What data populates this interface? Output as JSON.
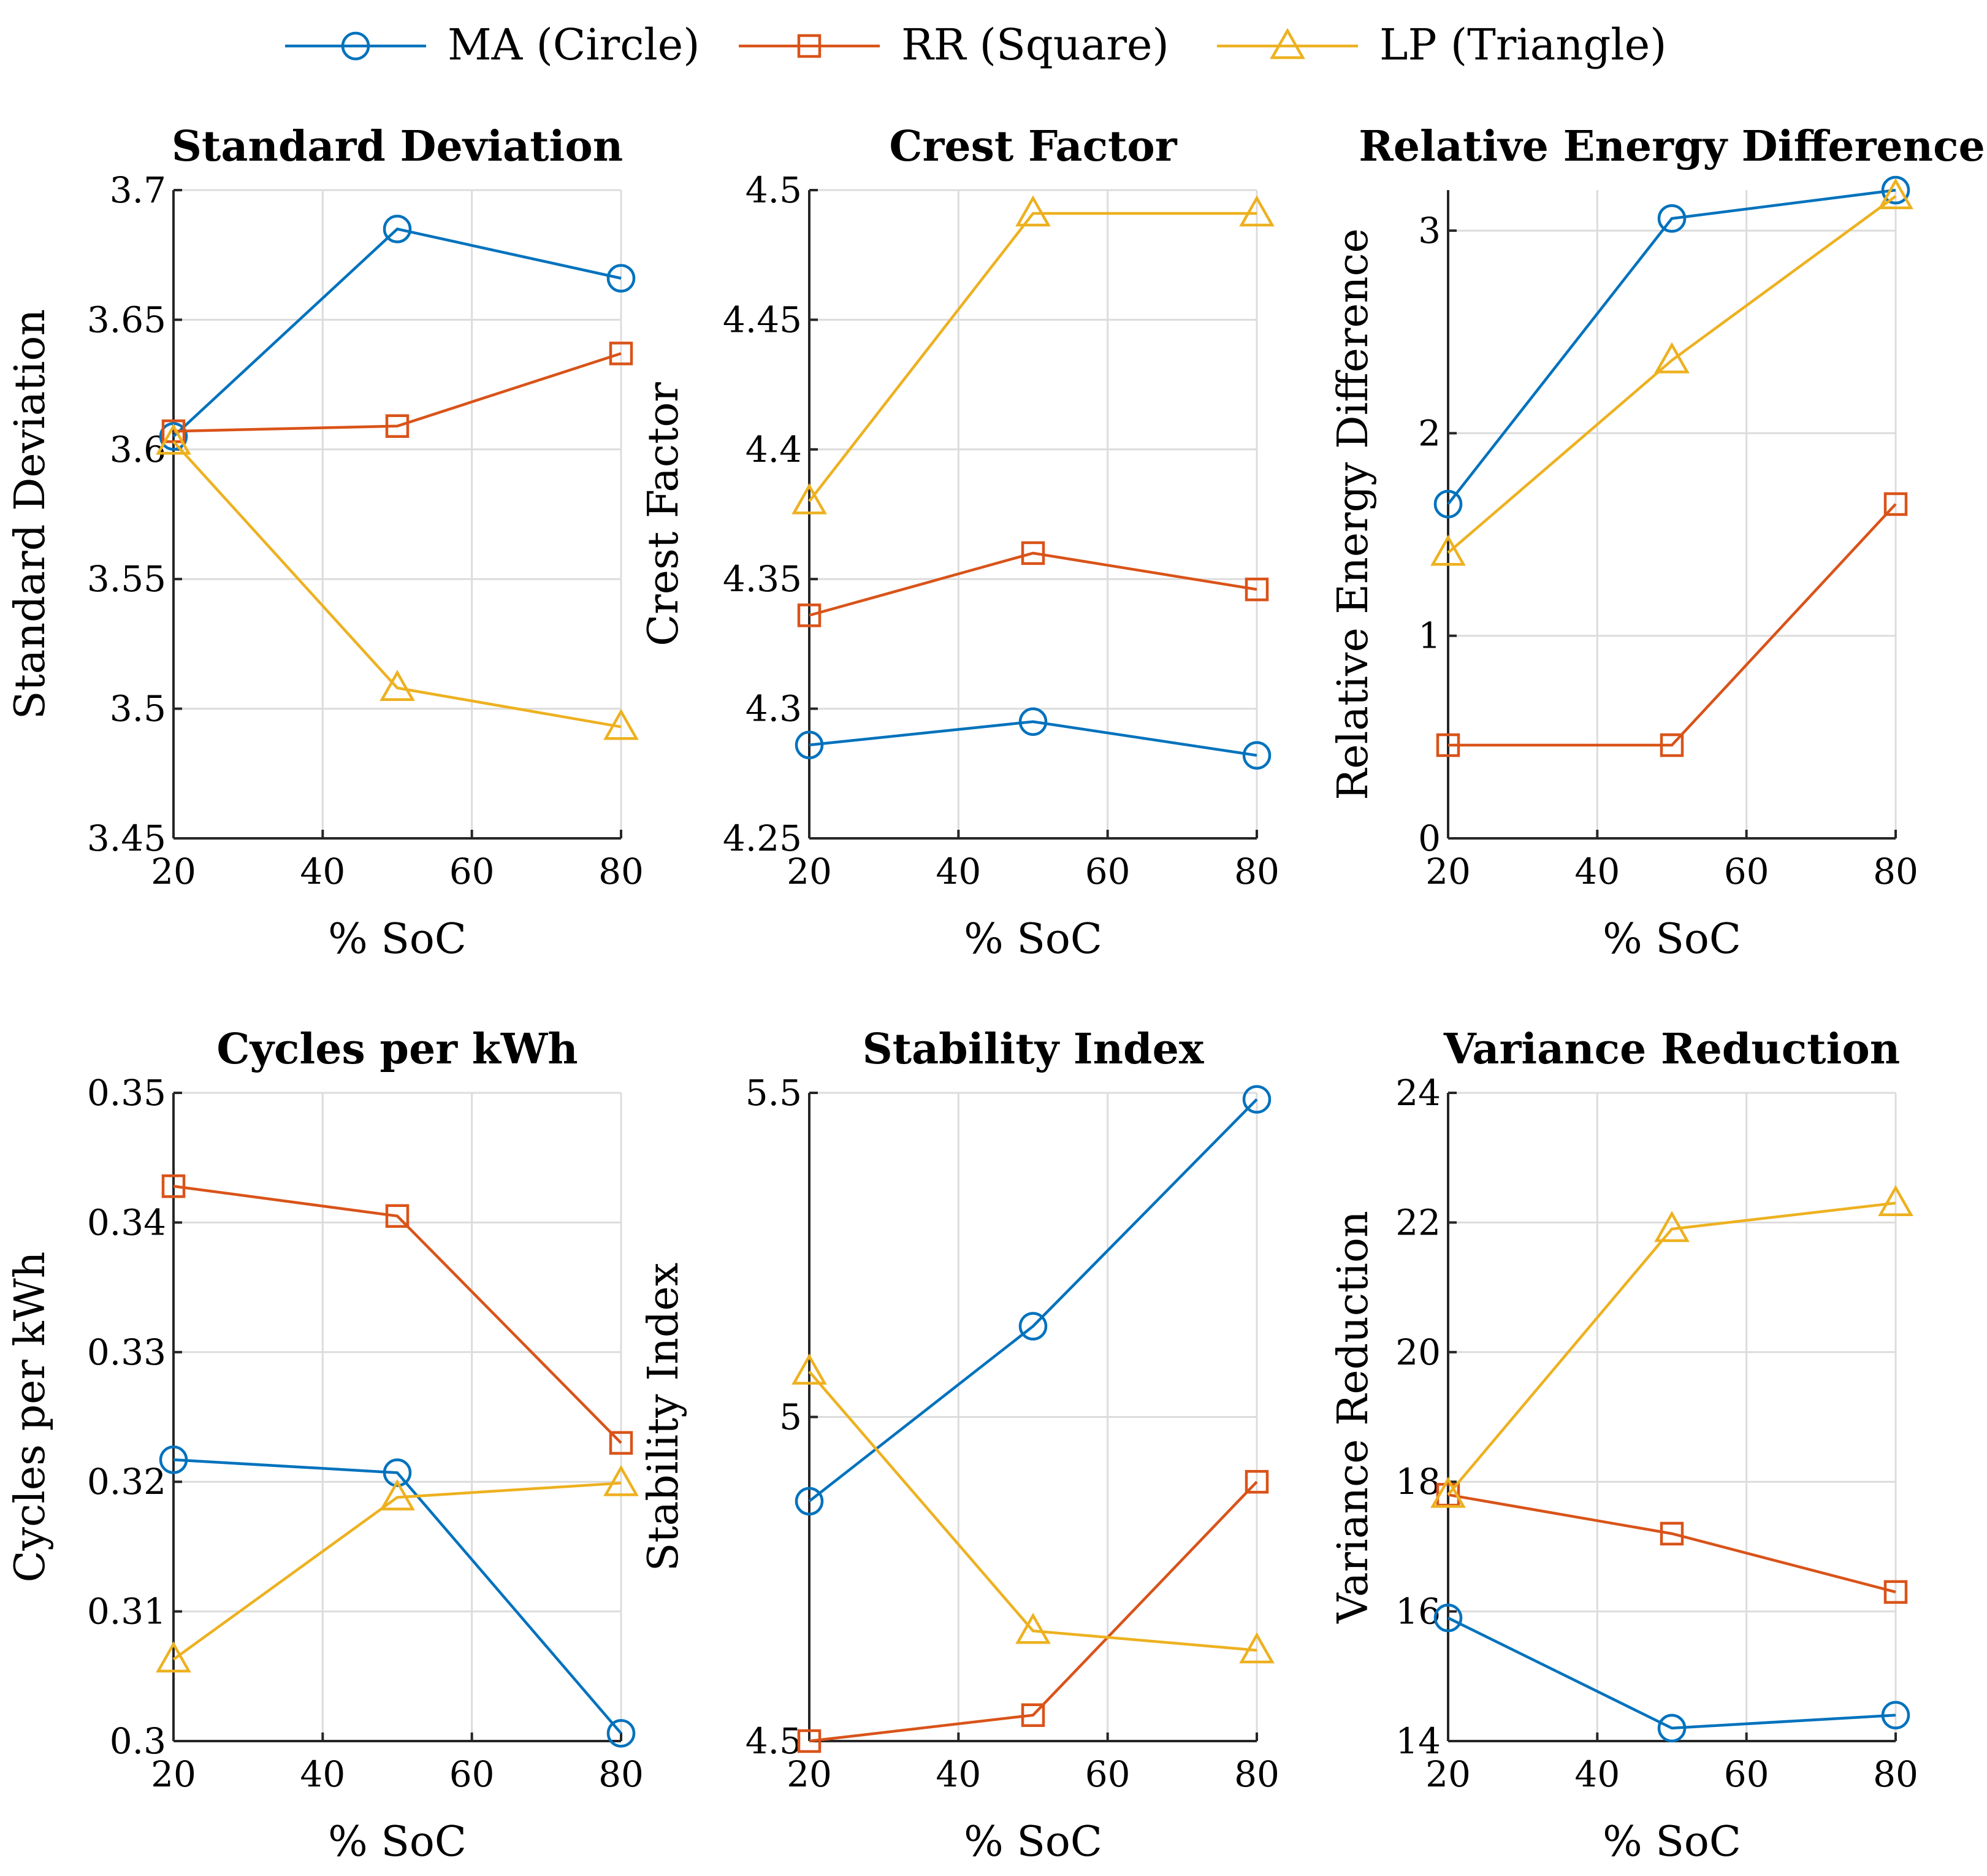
{
  "legend": [
    {
      "name": "MA (Circle)",
      "marker": "circle",
      "color": "#0072BD"
    },
    {
      "name": "RR (Square)",
      "marker": "square",
      "color": "#D95319"
    },
    {
      "name": "LP (Triangle)",
      "marker": "triangle",
      "color": "#EDB120"
    }
  ],
  "chart_data": [
    {
      "type": "line",
      "title": "Standard Deviation",
      "xlabel": "% SoC",
      "ylabel": "Standard Deviation",
      "x": [
        20,
        50,
        80
      ],
      "xlim": [
        20,
        80
      ],
      "xticks": [
        20,
        40,
        60,
        80
      ],
      "ylim": [
        3.45,
        3.7
      ],
      "yticks": [
        3.45,
        3.5,
        3.55,
        3.6,
        3.65,
        3.7
      ],
      "ytick_labels": [
        "3.45",
        "3.5",
        "3.55",
        "3.6",
        "3.65",
        "3.7"
      ],
      "grid": true,
      "series": [
        {
          "name": "MA (Circle)",
          "values": [
            3.605,
            3.685,
            3.666
          ]
        },
        {
          "name": "RR (Square)",
          "values": [
            3.607,
            3.609,
            3.637
          ]
        },
        {
          "name": "LP (Triangle)",
          "values": [
            3.603,
            3.508,
            3.493
          ]
        }
      ]
    },
    {
      "type": "line",
      "title": "Crest Factor",
      "xlabel": "% SoC",
      "ylabel": "Crest Factor",
      "x": [
        20,
        50,
        80
      ],
      "xlim": [
        20,
        80
      ],
      "xticks": [
        20,
        40,
        60,
        80
      ],
      "ylim": [
        4.25,
        4.5
      ],
      "yticks": [
        4.25,
        4.3,
        4.35,
        4.4,
        4.45,
        4.5
      ],
      "ytick_labels": [
        "4.25",
        "4.3",
        "4.35",
        "4.4",
        "4.45",
        "4.5"
      ],
      "grid": true,
      "series": [
        {
          "name": "MA (Circle)",
          "values": [
            4.286,
            4.295,
            4.282
          ]
        },
        {
          "name": "RR (Square)",
          "values": [
            4.336,
            4.36,
            4.346
          ]
        },
        {
          "name": "LP (Triangle)",
          "values": [
            4.38,
            4.491,
            4.491
          ]
        }
      ]
    },
    {
      "type": "line",
      "title": "Relative Energy Difference",
      "xlabel": "% SoC",
      "ylabel": "Relative Energy Difference",
      "x": [
        20,
        50,
        80
      ],
      "xlim": [
        20,
        80
      ],
      "xticks": [
        20,
        40,
        60,
        80
      ],
      "ylim": [
        0,
        3.2
      ],
      "yticks": [
        0,
        1,
        2,
        3
      ],
      "ytick_labels": [
        "0",
        "1",
        "2",
        "3"
      ],
      "grid": true,
      "series": [
        {
          "name": "MA (Circle)",
          "values": [
            1.65,
            3.06,
            3.2
          ]
        },
        {
          "name": "RR (Square)",
          "values": [
            0.46,
            0.46,
            1.65
          ]
        },
        {
          "name": "LP (Triangle)",
          "values": [
            1.41,
            2.36,
            3.17
          ]
        }
      ]
    },
    {
      "type": "line",
      "title": "Cycles per kWh",
      "xlabel": "% SoC",
      "ylabel": "Cycles per kWh",
      "x": [
        20,
        50,
        80
      ],
      "xlim": [
        20,
        80
      ],
      "xticks": [
        20,
        40,
        60,
        80
      ],
      "ylim": [
        0.3,
        0.35
      ],
      "yticks": [
        0.3,
        0.31,
        0.32,
        0.33,
        0.34,
        0.35
      ],
      "ytick_labels": [
        "0.3",
        "0.31",
        "0.32",
        "0.33",
        "0.34",
        "0.35"
      ],
      "grid": true,
      "series": [
        {
          "name": "MA (Circle)",
          "values": [
            0.3217,
            0.3207,
            0.3006
          ]
        },
        {
          "name": "RR (Square)",
          "values": [
            0.3428,
            0.3405,
            0.323
          ]
        },
        {
          "name": "LP (Triangle)",
          "values": [
            0.3063,
            0.3188,
            0.3199
          ]
        }
      ]
    },
    {
      "type": "line",
      "title": "Stability Index",
      "xlabel": "% SoC",
      "ylabel": "Stability Index",
      "x": [
        20,
        50,
        80
      ],
      "xlim": [
        20,
        80
      ],
      "xticks": [
        20,
        40,
        60,
        80
      ],
      "ylim": [
        4.5,
        5.5
      ],
      "yticks": [
        4.5,
        5,
        5.5
      ],
      "ytick_labels": [
        "4.5",
        "5",
        "5.5"
      ],
      "grid": true,
      "series": [
        {
          "name": "MA (Circle)",
          "values": [
            4.87,
            5.14,
            5.49
          ]
        },
        {
          "name": "RR (Square)",
          "values": [
            4.5,
            4.54,
            4.9
          ]
        },
        {
          "name": "LP (Triangle)",
          "values": [
            5.07,
            4.67,
            4.64
          ]
        }
      ]
    },
    {
      "type": "line",
      "title": "Variance Reduction",
      "xlabel": "% SoC",
      "ylabel": "Variance Reduction",
      "x": [
        20,
        50,
        80
      ],
      "xlim": [
        20,
        80
      ],
      "xticks": [
        20,
        40,
        60,
        80
      ],
      "ylim": [
        14,
        24
      ],
      "yticks": [
        14,
        16,
        18,
        20,
        22,
        24
      ],
      "ytick_labels": [
        "14",
        "16",
        "18",
        "20",
        "22",
        "24"
      ],
      "grid": true,
      "series": [
        {
          "name": "MA (Circle)",
          "values": [
            15.9,
            14.2,
            14.4
          ]
        },
        {
          "name": "RR (Square)",
          "values": [
            17.8,
            17.2,
            16.3
          ]
        },
        {
          "name": "LP (Triangle)",
          "values": [
            17.8,
            21.9,
            22.3
          ]
        }
      ]
    }
  ]
}
